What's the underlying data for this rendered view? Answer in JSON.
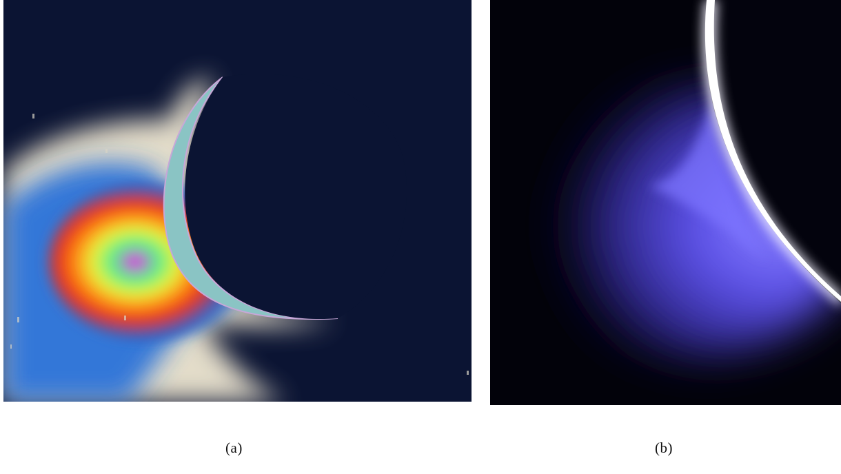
{
  "figure": {
    "panels": [
      {
        "caption": "(a)",
        "description_icon": "false-color-moon-plume-image",
        "colors": {
          "background": "#0b1433",
          "plume_outer": "#efe7d2",
          "plume_blue": "#1f62c8",
          "plume_red": "#e8321a",
          "plume_green": "#2fe06a",
          "plume_magenta": "#f01ef0"
        }
      },
      {
        "caption": "(b)",
        "description_icon": "moon-limb-plume-image",
        "colors": {
          "background": "#02020a",
          "plume": "#6d63ff",
          "limb": "#f4f2ff"
        }
      }
    ]
  }
}
